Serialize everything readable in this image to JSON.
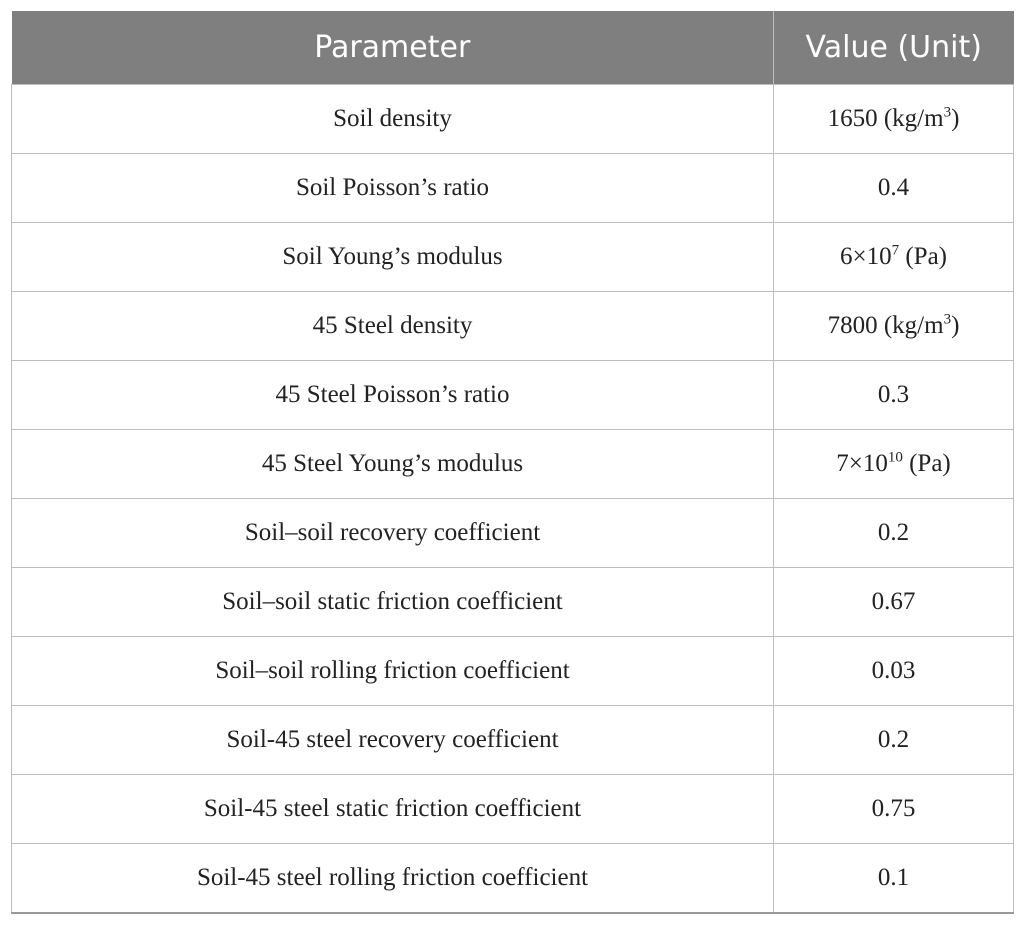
{
  "table": {
    "headers": [
      "Parameter",
      "Value (Unit)"
    ],
    "rows": [
      {
        "parameter": "Soil density",
        "value": {
          "pre": "1650 (kg/m",
          "sup": "3",
          "post": ")"
        }
      },
      {
        "parameter": "Soil Poisson’s ratio",
        "value": {
          "pre": "0.4",
          "sup": "",
          "post": ""
        }
      },
      {
        "parameter": "Soil Young’s modulus",
        "value": {
          "pre": "6×10",
          "sup": "7",
          "post": " (Pa)"
        }
      },
      {
        "parameter": "45 Steel density",
        "value": {
          "pre": "7800 (kg/m",
          "sup": "3",
          "post": ")"
        }
      },
      {
        "parameter": "45 Steel Poisson’s ratio",
        "value": {
          "pre": "0.3",
          "sup": "",
          "post": ""
        }
      },
      {
        "parameter": "45 Steel Young’s modulus",
        "value": {
          "pre": "7×10",
          "sup": "10",
          "post": " (Pa)"
        }
      },
      {
        "parameter": "Soil–soil recovery coefficient",
        "value": {
          "pre": "0.2",
          "sup": "",
          "post": ""
        }
      },
      {
        "parameter": "Soil–soil static friction coefficient",
        "value": {
          "pre": "0.67",
          "sup": "",
          "post": ""
        }
      },
      {
        "parameter": "Soil–soil rolling friction coefficient",
        "value": {
          "pre": "0.03",
          "sup": "",
          "post": ""
        }
      },
      {
        "parameter": "Soil-45 steel recovery coefficient",
        "value": {
          "pre": "0.2",
          "sup": "",
          "post": ""
        }
      },
      {
        "parameter": "Soil-45 steel static friction coefficient",
        "value": {
          "pre": "0.75",
          "sup": "",
          "post": ""
        }
      },
      {
        "parameter": "Soil-45 steel rolling friction coefficient",
        "value": {
          "pre": "0.1",
          "sup": "",
          "post": ""
        }
      }
    ]
  },
  "colors": {
    "header_bg": "#7f7f7f",
    "header_text": "#ffffff",
    "border": "#bdbdbd"
  }
}
